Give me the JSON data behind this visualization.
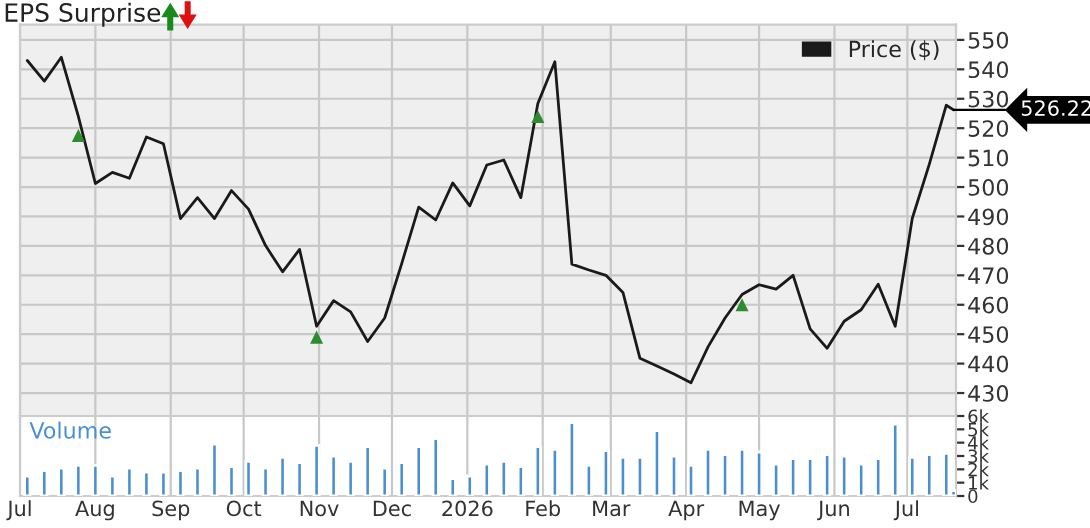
{
  "chart_data": [
    {
      "type": "line",
      "title": "EPS Surprise",
      "x": [
        "2025-07-04",
        "2025-07-11",
        "2025-07-18",
        "2025-07-25",
        "2025-08-01",
        "2025-08-08",
        "2025-08-15",
        "2025-08-22",
        "2025-08-29",
        "2025-09-05",
        "2025-09-12",
        "2025-09-19",
        "2025-09-26",
        "2025-10-03",
        "2025-10-10",
        "2025-10-17",
        "2025-10-24",
        "2025-10-31",
        "2025-11-07",
        "2025-11-14",
        "2025-11-21",
        "2025-11-28",
        "2025-12-05",
        "2025-12-12",
        "2025-12-19",
        "2025-12-26",
        "2026-01-02",
        "2026-01-09",
        "2026-01-16",
        "2026-01-23",
        "2026-01-30",
        "2026-02-06",
        "2026-02-13",
        "2026-02-20",
        "2026-02-27",
        "2026-03-06",
        "2026-03-13",
        "2026-03-20",
        "2026-03-27",
        "2026-04-03",
        "2026-04-10",
        "2026-04-17",
        "2026-04-24",
        "2026-05-01",
        "2026-05-08",
        "2026-05-15",
        "2026-05-22",
        "2026-05-29",
        "2026-06-05",
        "2026-06-12",
        "2026-06-19",
        "2026-06-26",
        "2026-07-03",
        "2026-07-10",
        "2026-07-17",
        "2026-07-20"
      ],
      "series": [
        {
          "name": "Price ($)",
          "color": "#1a1a1a",
          "values": [
            543,
            536,
            544.1,
            524,
            501.2,
            505,
            503,
            517,
            514.7,
            489.3,
            496.4,
            489.3,
            498.8,
            492.5,
            480.1,
            471.2,
            478.8,
            452.7,
            461.4,
            457.6,
            447.5,
            455.5,
            474,
            493.2,
            488.8,
            501.4,
            493.6,
            507.5,
            509.2,
            496.4,
            528.4,
            542.6,
            473.8,
            471.8,
            470,
            464.2,
            441.8,
            439.2,
            436.5,
            433.5,
            445.7,
            455.5,
            463.5,
            466.8,
            465.3,
            470,
            451.8,
            445.2,
            454.4,
            458.3,
            467,
            452.7,
            489.3,
            507.7,
            527.8,
            526.22
          ]
        },
        {
          "type": "scatter",
          "color": "#2e8b2e",
          "marker": "triangle",
          "x": [
            "2025-07-25",
            "2025-10-31",
            "2026-01-30",
            "2026-04-24"
          ],
          "values": [
            517.5,
            449,
            524,
            460
          ]
        }
      ],
      "xlim": [
        "2025-07-01",
        "2026-07-21"
      ],
      "xticks": [
        {
          "value": "2025-07-01",
          "label": null
        },
        {
          "value": "2025-08-01",
          "label": null
        },
        {
          "value": "2025-09-01",
          "label": null
        },
        {
          "value": "2025-10-01",
          "label": null
        },
        {
          "value": "2025-11-01",
          "label": null
        },
        {
          "value": "2025-12-01",
          "label": null
        },
        {
          "value": "2026-01-01",
          "label": null
        },
        {
          "value": "2026-02-01",
          "label": null
        },
        {
          "value": "2026-03-01",
          "label": null
        },
        {
          "value": "2026-04-01",
          "label": null
        },
        {
          "value": "2026-05-01",
          "label": null
        },
        {
          "value": "2026-06-01",
          "label": null
        },
        {
          "value": "2026-07-01",
          "label": null
        }
      ],
      "ylim": [
        422.2,
        555.2
      ],
      "yticks": [
        430,
        440,
        450,
        460,
        470,
        480,
        490,
        500,
        510,
        520,
        530,
        540,
        550
      ],
      "grid": true,
      "legend": "top right",
      "tick_labels": "y",
      "annotations": [
        {
          "text": "526.22",
          "x": "2026-07-20",
          "y": 526.22
        }
      ]
    },
    {
      "type": "bar",
      "title": "Volume",
      "color": "#4a90d0",
      "x": [
        "2025-07-04",
        "2025-07-11",
        "2025-07-18",
        "2025-07-25",
        "2025-08-01",
        "2025-08-08",
        "2025-08-15",
        "2025-08-22",
        "2025-08-29",
        "2025-09-05",
        "2025-09-12",
        "2025-09-19",
        "2025-09-26",
        "2025-10-03",
        "2025-10-10",
        "2025-10-17",
        "2025-10-24",
        "2025-10-31",
        "2025-11-07",
        "2025-11-14",
        "2025-11-21",
        "2025-11-28",
        "2025-12-05",
        "2025-12-12",
        "2025-12-19",
        "2025-12-26",
        "2026-01-02",
        "2026-01-09",
        "2026-01-16",
        "2026-01-23",
        "2026-01-30",
        "2026-02-06",
        "2026-02-13",
        "2026-02-20",
        "2026-02-27",
        "2026-03-06",
        "2026-03-13",
        "2026-03-20",
        "2026-03-27",
        "2026-04-03",
        "2026-04-10",
        "2026-04-17",
        "2026-04-24",
        "2026-05-01",
        "2026-05-08",
        "2026-05-15",
        "2026-05-22",
        "2026-05-29",
        "2026-06-05",
        "2026-06-12",
        "2026-06-19",
        "2026-06-26",
        "2026-07-03",
        "2026-07-10",
        "2026-07-17",
        "2026-07-20"
      ],
      "values": [
        1.5,
        1.9,
        2.1,
        2.3,
        2.3,
        1.5,
        2.1,
        1.8,
        1.8,
        1.9,
        2.1,
        3.9,
        2.2,
        2.6,
        2.1,
        2.9,
        2.5,
        3.8,
        3.0,
        2.6,
        3.7,
        2.1,
        2.5,
        3.7,
        4.3,
        1.3,
        1.5,
        2.4,
        2.6,
        2.2,
        3.7,
        3.5,
        5.5,
        2.3,
        3.4,
        2.9,
        2.9,
        4.9,
        3.0,
        2.3,
        3.5,
        3.1,
        3.5,
        3.3,
        2.4,
        2.8,
        2.8,
        3.1,
        3.0,
        2.4,
        2.8,
        5.4,
        2.9,
        3.1,
        3.2,
        0.4
      ],
      "xlim": [
        "2025-07-01",
        "2026-07-21"
      ],
      "xticks": [
        {
          "value": "2025-07-01",
          "label": "Jul"
        },
        {
          "value": "2025-08-01",
          "label": "Aug"
        },
        {
          "value": "2025-09-01",
          "label": "Sep"
        },
        {
          "value": "2025-10-01",
          "label": "Oct"
        },
        {
          "value": "2025-11-01",
          "label": "Nov"
        },
        {
          "value": "2025-12-01",
          "label": "Dec"
        },
        {
          "value": "2026-01-01",
          "label": "2026"
        },
        {
          "value": "2026-02-01",
          "label": "Feb"
        },
        {
          "value": "2026-03-01",
          "label": "Mar"
        },
        {
          "value": "2026-04-01",
          "label": "Apr"
        },
        {
          "value": "2026-05-01",
          "label": "May"
        },
        {
          "value": "2026-06-01",
          "label": "Jun"
        },
        {
          "value": "2026-07-01",
          "label": "Jul"
        }
      ],
      "ylim": [
        0,
        6
      ],
      "yticks": [
        {
          "value": 0,
          "label": "0"
        },
        {
          "value": 1,
          "label": "1k"
        },
        {
          "value": 2,
          "label": "2k"
        },
        {
          "value": 3,
          "label": "3k"
        },
        {
          "value": 4,
          "label": "4k"
        },
        {
          "value": 5,
          "label": "5k"
        },
        {
          "value": 6,
          "label": "6k"
        }
      ],
      "grid": "x"
    }
  ]
}
